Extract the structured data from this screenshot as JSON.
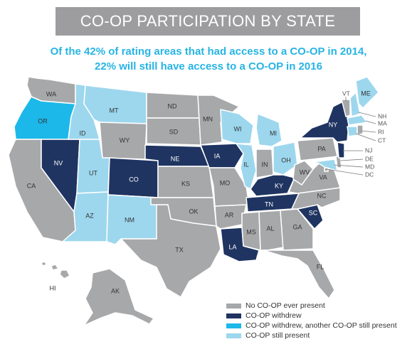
{
  "title": "CO-OP PARTICIPATION BY STATE",
  "subtitle": {
    "line1": "Of the 42% of rating areas that had access to a CO-OP in 2014,",
    "line2": "22% will still have access to a CO-OP in 2016"
  },
  "colors": {
    "none": "#a7a8aa",
    "withdrew": "#1f3461",
    "withdrew_other": "#1cb8ea",
    "still": "#9dd7ee"
  },
  "legend": [
    {
      "key": "none",
      "label": "No CO-OP ever present"
    },
    {
      "key": "withdrew",
      "label": "CO-OP withdrew"
    },
    {
      "key": "withdrew_other",
      "label": "CO-OP withdrew, another CO-OP still present"
    },
    {
      "key": "still",
      "label": "CO-OP still present"
    }
  ],
  "states": {
    "WA": {
      "label": "WA",
      "status": "none"
    },
    "OR": {
      "label": "OR",
      "status": "withdrew_other"
    },
    "CA": {
      "label": "CA",
      "status": "none"
    },
    "ID": {
      "label": "ID",
      "status": "still"
    },
    "NV": {
      "label": "NV",
      "status": "withdrew"
    },
    "MT": {
      "label": "MT",
      "status": "still"
    },
    "WY": {
      "label": "WY",
      "status": "none"
    },
    "UT": {
      "label": "UT",
      "status": "still"
    },
    "CO": {
      "label": "CO",
      "status": "withdrew"
    },
    "AZ": {
      "label": "AZ",
      "status": "still"
    },
    "NM": {
      "label": "NM",
      "status": "still"
    },
    "ND": {
      "label": "ND",
      "status": "none"
    },
    "SD": {
      "label": "SD",
      "status": "none"
    },
    "NE": {
      "label": "NE",
      "status": "withdrew"
    },
    "KS": {
      "label": "KS",
      "status": "none"
    },
    "OK": {
      "label": "OK",
      "status": "none"
    },
    "TX": {
      "label": "TX",
      "status": "none"
    },
    "MN": {
      "label": "MN",
      "status": "none"
    },
    "IA": {
      "label": "IA",
      "status": "withdrew"
    },
    "MO": {
      "label": "MO",
      "status": "none"
    },
    "AR": {
      "label": "AR",
      "status": "none"
    },
    "LA": {
      "label": "LA",
      "status": "withdrew"
    },
    "WI": {
      "label": "WI",
      "status": "still"
    },
    "IL": {
      "label": "IL",
      "status": "still"
    },
    "MI": {
      "label": "MI",
      "status": "still"
    },
    "IN": {
      "label": "IN",
      "status": "none"
    },
    "OH": {
      "label": "OH",
      "status": "still"
    },
    "KY": {
      "label": "KY",
      "status": "withdrew"
    },
    "TN": {
      "label": "TN",
      "status": "withdrew"
    },
    "MS": {
      "label": "MS",
      "status": "none"
    },
    "AL": {
      "label": "AL",
      "status": "none"
    },
    "GA": {
      "label": "GA",
      "status": "none"
    },
    "FL": {
      "label": "FL",
      "status": "none"
    },
    "SC": {
      "label": "SC",
      "status": "withdrew"
    },
    "NC": {
      "label": "NC",
      "status": "none"
    },
    "VA": {
      "label": "VA",
      "status": "none"
    },
    "WV": {
      "label": "WV",
      "status": "none"
    },
    "PA": {
      "label": "PA",
      "status": "none"
    },
    "NY": {
      "label": "NY",
      "status": "withdrew"
    },
    "VT": {
      "label": "VT",
      "status": "none"
    },
    "NH": {
      "label": "NH",
      "status": "still"
    },
    "ME": {
      "label": "ME",
      "status": "still"
    },
    "MA": {
      "label": "MA",
      "status": "still"
    },
    "RI": {
      "label": "RI",
      "status": "none"
    },
    "CT": {
      "label": "CT",
      "status": "still"
    },
    "NJ": {
      "label": "NJ",
      "status": "withdrew"
    },
    "DE": {
      "label": "DE",
      "status": "none"
    },
    "MD": {
      "label": "MD",
      "status": "still"
    },
    "DC": {
      "label": "DC",
      "status": "none"
    },
    "AK": {
      "label": "AK",
      "status": "none"
    },
    "HI": {
      "label": "HI",
      "status": "none"
    }
  }
}
